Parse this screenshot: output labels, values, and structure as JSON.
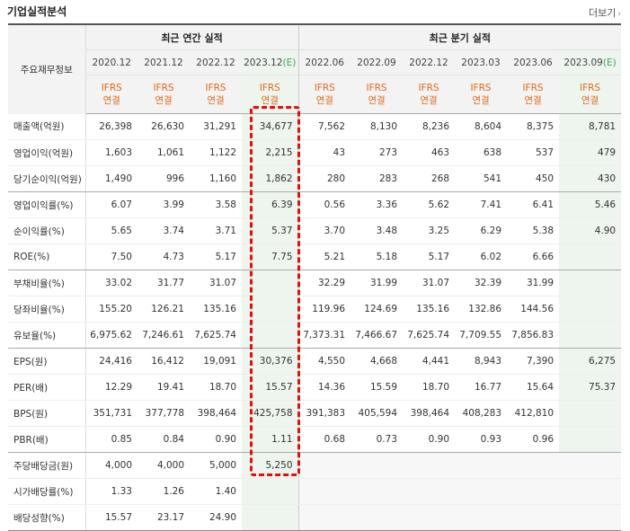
{
  "header": {
    "title": "기업실적분석",
    "more_label": "더보기",
    "more_arrow": "›"
  },
  "table": {
    "corner_label": "주요재무정보",
    "annual_group": "최근 연간 실적",
    "quarter_group": "최근 분기 실적",
    "periods": [
      {
        "base": "2020.12",
        "est": ""
      },
      {
        "base": "2021.12",
        "est": ""
      },
      {
        "base": "2022.12",
        "est": ""
      },
      {
        "base": "2023.12",
        "est": "(E)"
      },
      {
        "base": "2022.06",
        "est": ""
      },
      {
        "base": "2022.09",
        "est": ""
      },
      {
        "base": "2022.12",
        "est": ""
      },
      {
        "base": "2023.03",
        "est": ""
      },
      {
        "base": "2023.06",
        "est": ""
      },
      {
        "base": "2023.09",
        "est": "(E)"
      }
    ],
    "ifrs_line1": "IFRS",
    "ifrs_line2": "연결",
    "rows": [
      {
        "label": "매출액(억원)",
        "values": [
          "26,398",
          "26,630",
          "31,291",
          "34,677",
          "7,562",
          "8,130",
          "8,236",
          "8,604",
          "8,375",
          "8,781"
        ]
      },
      {
        "label": "영업이익(억원)",
        "values": [
          "1,603",
          "1,061",
          "1,122",
          "2,215",
          "43",
          "273",
          "463",
          "638",
          "537",
          "479"
        ]
      },
      {
        "label": "당기순이익(억원)",
        "values": [
          "1,490",
          "996",
          "1,160",
          "1,862",
          "280",
          "283",
          "268",
          "541",
          "450",
          "430"
        ]
      },
      {
        "label": "영업이익률(%)",
        "values": [
          "6.07",
          "3.99",
          "3.58",
          "6.39",
          "0.56",
          "3.36",
          "5.62",
          "7.41",
          "6.41",
          "5.46"
        ]
      },
      {
        "label": "순이익률(%)",
        "values": [
          "5.65",
          "3.74",
          "3.71",
          "5.37",
          "3.70",
          "3.48",
          "3.25",
          "6.29",
          "5.38",
          "4.90"
        ]
      },
      {
        "label": "ROE(%)",
        "values": [
          "7.50",
          "4.73",
          "5.17",
          "7.75",
          "5.21",
          "5.18",
          "5.17",
          "6.02",
          "6.66",
          ""
        ]
      },
      {
        "label": "부채비율(%)",
        "values": [
          "33.02",
          "31.77",
          "31.07",
          "",
          "32.29",
          "31.99",
          "31.07",
          "32.39",
          "31.99",
          ""
        ]
      },
      {
        "label": "당좌비율(%)",
        "values": [
          "155.20",
          "126.21",
          "135.16",
          "",
          "119.96",
          "124.69",
          "135.16",
          "132.86",
          "144.56",
          ""
        ]
      },
      {
        "label": "유보율(%)",
        "values": [
          "6,975.62",
          "7,246.61",
          "7,625.74",
          "",
          "7,373.31",
          "7,466.67",
          "7,625.74",
          "7,709.55",
          "7,856.83",
          ""
        ]
      },
      {
        "label": "EPS(원)",
        "values": [
          "24,416",
          "16,412",
          "19,091",
          "30,376",
          "4,550",
          "4,668",
          "4,441",
          "8,943",
          "7,390",
          "6,275"
        ]
      },
      {
        "label": "PER(배)",
        "values": [
          "12.29",
          "19.41",
          "18.70",
          "15.57",
          "14.36",
          "15.59",
          "18.70",
          "16.77",
          "15.64",
          "75.37"
        ]
      },
      {
        "label": "BPS(원)",
        "values": [
          "351,731",
          "377,778",
          "398,464",
          "425,758",
          "391,383",
          "405,594",
          "398,464",
          "408,283",
          "412,810",
          ""
        ]
      },
      {
        "label": "PBR(배)",
        "values": [
          "0.85",
          "0.84",
          "0.90",
          "1.11",
          "0.68",
          "0.73",
          "0.90",
          "0.93",
          "0.96",
          ""
        ]
      },
      {
        "label": "주당배당금(원)",
        "values": [
          "4,000",
          "4,000",
          "5,000",
          "5,250",
          "",
          "",
          "",
          "",
          "",
          ""
        ]
      },
      {
        "label": "시가배당률(%)",
        "values": [
          "1.33",
          "1.26",
          "1.40",
          "",
          "",
          "",
          "",
          "",
          "",
          ""
        ]
      },
      {
        "label": "배당성향(%)",
        "values": [
          "15.57",
          "23.17",
          "24.90",
          "",
          "",
          "",
          "",
          "",
          "",
          ""
        ]
      }
    ]
  },
  "colors": {
    "ifrs_text": "#e06a1a",
    "estimate_text": "#3aa650",
    "estimate_bg": "#edf5ee",
    "highlight_border": "#e01010"
  }
}
